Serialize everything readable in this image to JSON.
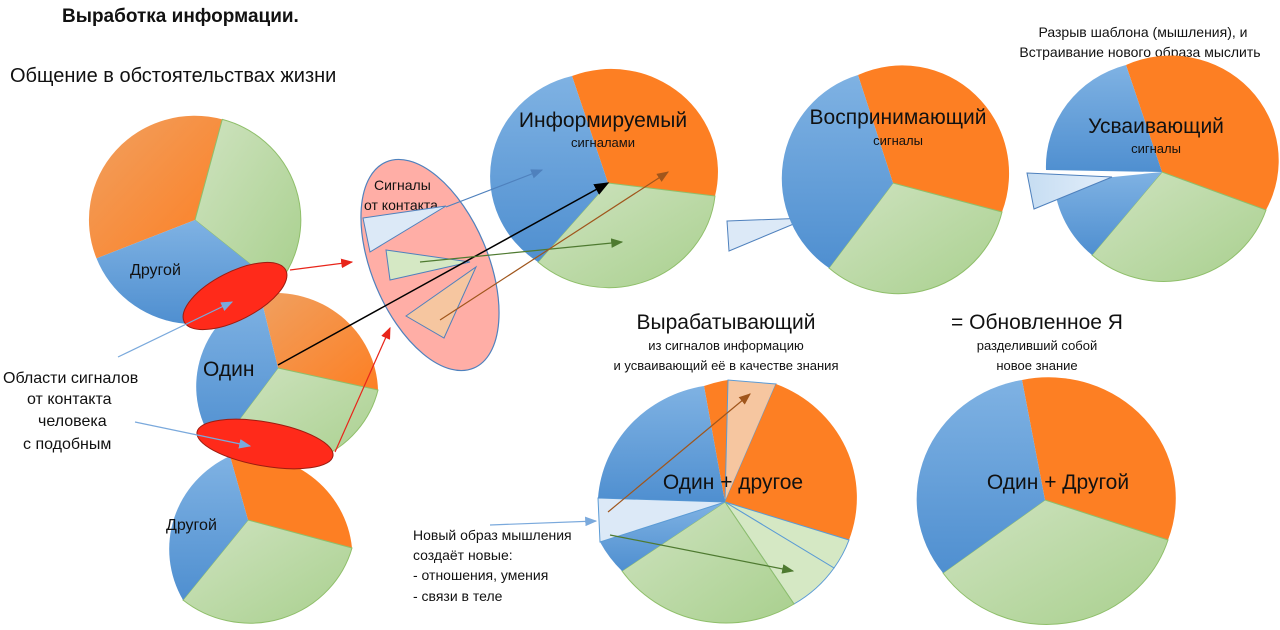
{
  "title": "Выработка информации.",
  "subtitle": "Общение в обстоятельствах жизни",
  "colors": {
    "orange": "#fd7f23",
    "green": "#b4d59b",
    "blue": "#5b9bd5",
    "red": "#ff2a1a",
    "pink": "#ffb0a8"
  },
  "left_group": {
    "top_pie_label": "Другой",
    "middle_pie_label": "Один",
    "bottom_pie_label": "Другой",
    "contact_label": [
      "Области сигналов",
      "от контакта",
      "человека",
      "с подобным"
    ]
  },
  "signals": {
    "line1": "Сигналы",
    "line2": "от контакта"
  },
  "stages": {
    "informed": {
      "title": "Информируемый",
      "sub": "сигналами"
    },
    "perceiving": {
      "title": "Воспринимающий",
      "sub": "сигналы"
    },
    "assimilating": {
      "title": "Усваивающий",
      "sub": "сигналы"
    }
  },
  "pattern_break": [
    "Разрыв шаблона (мышления), и",
    "Встраивание нового образа мыслить"
  ],
  "producing": {
    "title": "Вырабатывающий",
    "sub": [
      "из сигналов информацию",
      "и усваивающий её в качестве знания"
    ],
    "pie_label": "Один + другое"
  },
  "renewed": {
    "title": "= Обновленное Я",
    "sub": [
      "разделивший собой",
      "новое знание"
    ],
    "pie_label": "Один + Другой"
  },
  "new_thinking": [
    "Новый образ мышления",
    "создаёт новые:",
    "- отношения, умения",
    "- связи в теле"
  ]
}
